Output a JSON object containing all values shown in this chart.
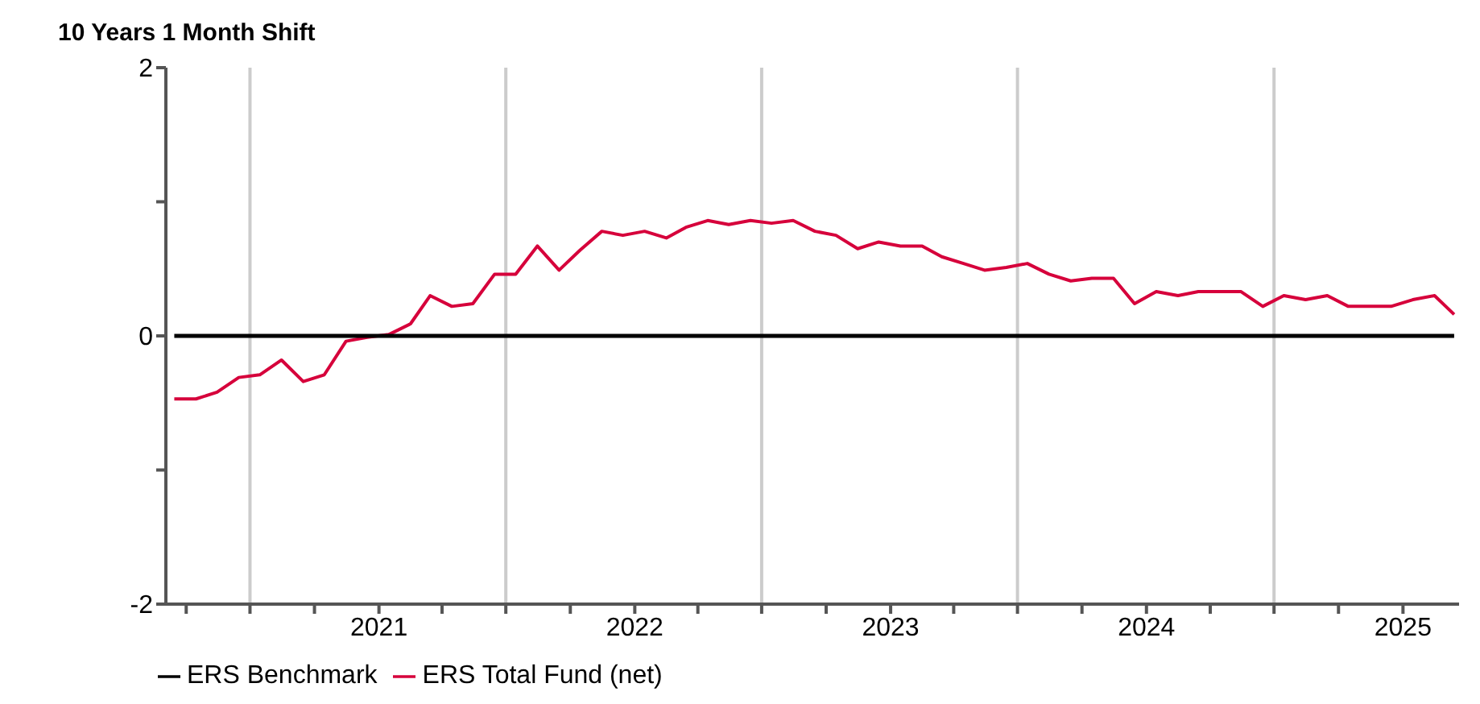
{
  "chart_data": {
    "type": "line",
    "subtitle": "10 Years 1 Month Shift",
    "x": [
      "2020-03-15",
      "2020-04-15",
      "2020-05-15",
      "2020-06-15",
      "2020-07-15",
      "2020-08-15",
      "2020-09-15",
      "2020-10-15",
      "2020-11-15",
      "2020-12-15",
      "2021-01-15",
      "2021-02-15",
      "2021-03-15",
      "2021-04-15",
      "2021-05-15",
      "2021-06-15",
      "2021-07-15",
      "2021-08-15",
      "2021-09-15",
      "2021-10-15",
      "2021-11-15",
      "2021-12-15",
      "2022-01-15",
      "2022-02-15",
      "2022-03-15",
      "2022-04-15",
      "2022-05-15",
      "2022-06-15",
      "2022-07-15",
      "2022-08-15",
      "2022-09-15",
      "2022-10-15",
      "2022-11-15",
      "2022-12-15",
      "2023-01-15",
      "2023-02-15",
      "2023-03-15",
      "2023-04-15",
      "2023-05-15",
      "2023-06-15",
      "2023-07-15",
      "2023-08-15",
      "2023-09-15",
      "2023-10-15",
      "2023-11-15",
      "2023-12-15",
      "2024-01-15",
      "2024-02-15",
      "2024-03-15",
      "2024-04-15",
      "2024-05-15",
      "2024-06-15",
      "2024-07-15",
      "2024-08-15",
      "2024-09-15",
      "2024-10-15",
      "2024-11-15",
      "2024-12-15",
      "2025-01-15",
      "2025-02-15",
      "2025-03-15"
    ],
    "series": [
      {
        "name": "ERS Total Fund (net)",
        "color": "#d6003b",
        "values": [
          -0.47,
          -0.47,
          -0.42,
          -0.31,
          -0.29,
          -0.18,
          -0.34,
          -0.29,
          -0.04,
          -0.01,
          0.01,
          0.09,
          0.3,
          0.22,
          0.24,
          0.46,
          0.46,
          0.67,
          0.49,
          0.64,
          0.78,
          0.75,
          0.78,
          0.73,
          0.81,
          0.86,
          0.83,
          0.86,
          0.84,
          0.86,
          0.78,
          0.75,
          0.65,
          0.7,
          0.67,
          0.67,
          0.59,
          0.54,
          0.49,
          0.51,
          0.54,
          0.46,
          0.41,
          0.43,
          0.43,
          0.24,
          0.33,
          0.3,
          0.33,
          0.33,
          0.33,
          0.22,
          0.3,
          0.27,
          0.3,
          0.22,
          0.22,
          0.22,
          0.27,
          0.3,
          0.16
        ]
      },
      {
        "name": "ERS Benchmark",
        "color": "#000000",
        "values": [
          0,
          0,
          0,
          0,
          0,
          0,
          0,
          0,
          0,
          0,
          0,
          0,
          0,
          0,
          0,
          0,
          0,
          0,
          0,
          0,
          0,
          0,
          0,
          0,
          0,
          0,
          0,
          0,
          0,
          0,
          0,
          0,
          0,
          0,
          0,
          0,
          0,
          0,
          0,
          0,
          0,
          0,
          0,
          0,
          0,
          0,
          0,
          0,
          0,
          0,
          0,
          0,
          0,
          0,
          0,
          0,
          0,
          0,
          0,
          0,
          0
        ]
      }
    ],
    "xlim": [
      "2020-03-03",
      "2025-03-22"
    ],
    "xticks": [
      {
        "value": "2020-04-01",
        "label": null
      },
      {
        "value": "2020-07-01",
        "label": null
      },
      {
        "value": "2020-10-01",
        "label": null
      },
      {
        "value": "2021-01-01",
        "label": "2021"
      },
      {
        "value": "2021-04-01",
        "label": null
      },
      {
        "value": "2021-07-01",
        "label": null
      },
      {
        "value": "2021-10-01",
        "label": null
      },
      {
        "value": "2022-01-01",
        "label": "2022"
      },
      {
        "value": "2022-04-01",
        "label": null
      },
      {
        "value": "2022-07-01",
        "label": null
      },
      {
        "value": "2022-10-01",
        "label": null
      },
      {
        "value": "2023-01-01",
        "label": "2023"
      },
      {
        "value": "2023-04-01",
        "label": null
      },
      {
        "value": "2023-07-01",
        "label": null
      },
      {
        "value": "2023-10-01",
        "label": null
      },
      {
        "value": "2024-01-01",
        "label": "2024"
      },
      {
        "value": "2024-04-01",
        "label": null
      },
      {
        "value": "2024-07-01",
        "label": null
      },
      {
        "value": "2024-10-01",
        "label": null
      },
      {
        "value": "2025-01-01",
        "label": "2025"
      }
    ],
    "ylim": [
      -2,
      2
    ],
    "yticks": [
      -2,
      {
        "value": -1,
        "label": null
      },
      0,
      {
        "value": 1,
        "label": null
      },
      2
    ],
    "grid": "x",
    "legend": "bottom left",
    "marker": "none",
    "line_style": "solid"
  }
}
